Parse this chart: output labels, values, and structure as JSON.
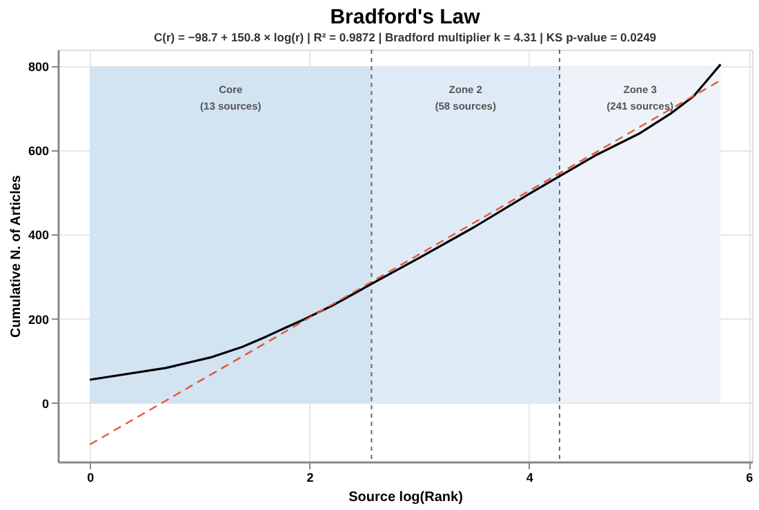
{
  "chart_data": {
    "type": "line",
    "title": "Bradford's Law",
    "subtitle": "C(r) = −98.7 + 150.8 × log(r)   |   R² = 0.9872   |   Bradford multiplier k = 4.31   |   KS p-value = 0.0249",
    "xlabel": "Source log(Rank)",
    "ylabel": "Cumulative N. of Articles",
    "xlim": [
      -0.29,
      6.03
    ],
    "ylim": [
      -140,
      840
    ],
    "xticks": [
      0,
      2,
      4,
      6
    ],
    "yticks": [
      0,
      200,
      400,
      600,
      800
    ],
    "grid": true,
    "series": [
      {
        "color": "#000000",
        "line_style": "solid",
        "x": [
          0,
          0.693,
          1.099,
          1.386,
          1.609,
          1.792,
          1.946,
          2.079,
          2.197,
          2.303,
          2.565,
          3.0,
          3.5,
          4.0,
          4.277,
          4.6,
          5.0,
          5.3,
          5.5,
          5.743
        ],
        "values": [
          55,
          83,
          108,
          133,
          158,
          180,
          198,
          215,
          230,
          245,
          283,
          345,
          418,
          497,
          539,
          588,
          640,
          690,
          730,
          805
        ]
      },
      {
        "type": "line",
        "color": "#e8543c",
        "line_style": "dashed",
        "x": [
          0,
          5.743
        ],
        "values": [
          -99,
          767
        ]
      }
    ],
    "bands": [
      {
        "axis": "x",
        "from": 0,
        "to": 2.565,
        "label": "Core\n(13 sources)",
        "color": "#d2e3f2"
      },
      {
        "axis": "x",
        "from": 2.565,
        "to": 4.277,
        "label": "Zone 2\n(58 sources)",
        "color": "#deebf6"
      },
      {
        "axis": "x",
        "from": 4.277,
        "to": 5.743,
        "label": "Zone 3\n(241 sources)",
        "color": "#edf3f9"
      }
    ],
    "ref_lines": [
      {
        "axis": "x",
        "value": 2.565,
        "color": "#666666",
        "line_style": "dashed"
      },
      {
        "axis": "x",
        "value": 4.277,
        "color": "#666666",
        "line_style": "dashed"
      }
    ]
  }
}
